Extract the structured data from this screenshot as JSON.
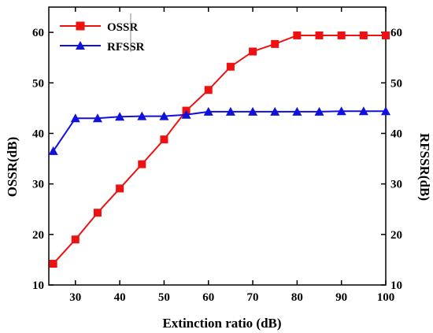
{
  "chart_data": {
    "type": "line",
    "xlabel": "Extinction ratio (dB)",
    "ylabel_left": "OSSR(dB)",
    "ylabel_right": "RFSSR(dB)",
    "xlim": [
      24,
      100
    ],
    "ylim_left": [
      10,
      65
    ],
    "ylim_right": [
      10,
      65
    ],
    "x_ticks": [
      30,
      40,
      50,
      60,
      70,
      80,
      90,
      100
    ],
    "y_ticks_left": [
      10,
      20,
      30,
      40,
      50,
      60
    ],
    "y_ticks_right": [
      10,
      20,
      30,
      40,
      50,
      60
    ],
    "grid": false,
    "legend_position": "top-left",
    "x": [
      25,
      30,
      35,
      40,
      45,
      50,
      55,
      60,
      65,
      70,
      75,
      80,
      85,
      90,
      95,
      100
    ],
    "series": [
      {
        "name": "OSSR",
        "axis": "left",
        "color": "#ee1111",
        "marker": "square",
        "values": [
          14.2,
          19.0,
          24.3,
          29.1,
          33.9,
          38.8,
          44.5,
          48.6,
          53.2,
          56.2,
          57.7,
          59.4,
          59.4,
          59.4,
          59.4,
          59.4
        ]
      },
      {
        "name": "RFSSR",
        "axis": "right",
        "color": "#1111dd",
        "marker": "triangle",
        "values": [
          36.5,
          43.0,
          43.0,
          43.3,
          43.4,
          43.4,
          43.7,
          44.3,
          44.3,
          44.3,
          44.3,
          44.3,
          44.3,
          44.4,
          44.4,
          44.4
        ]
      }
    ]
  }
}
